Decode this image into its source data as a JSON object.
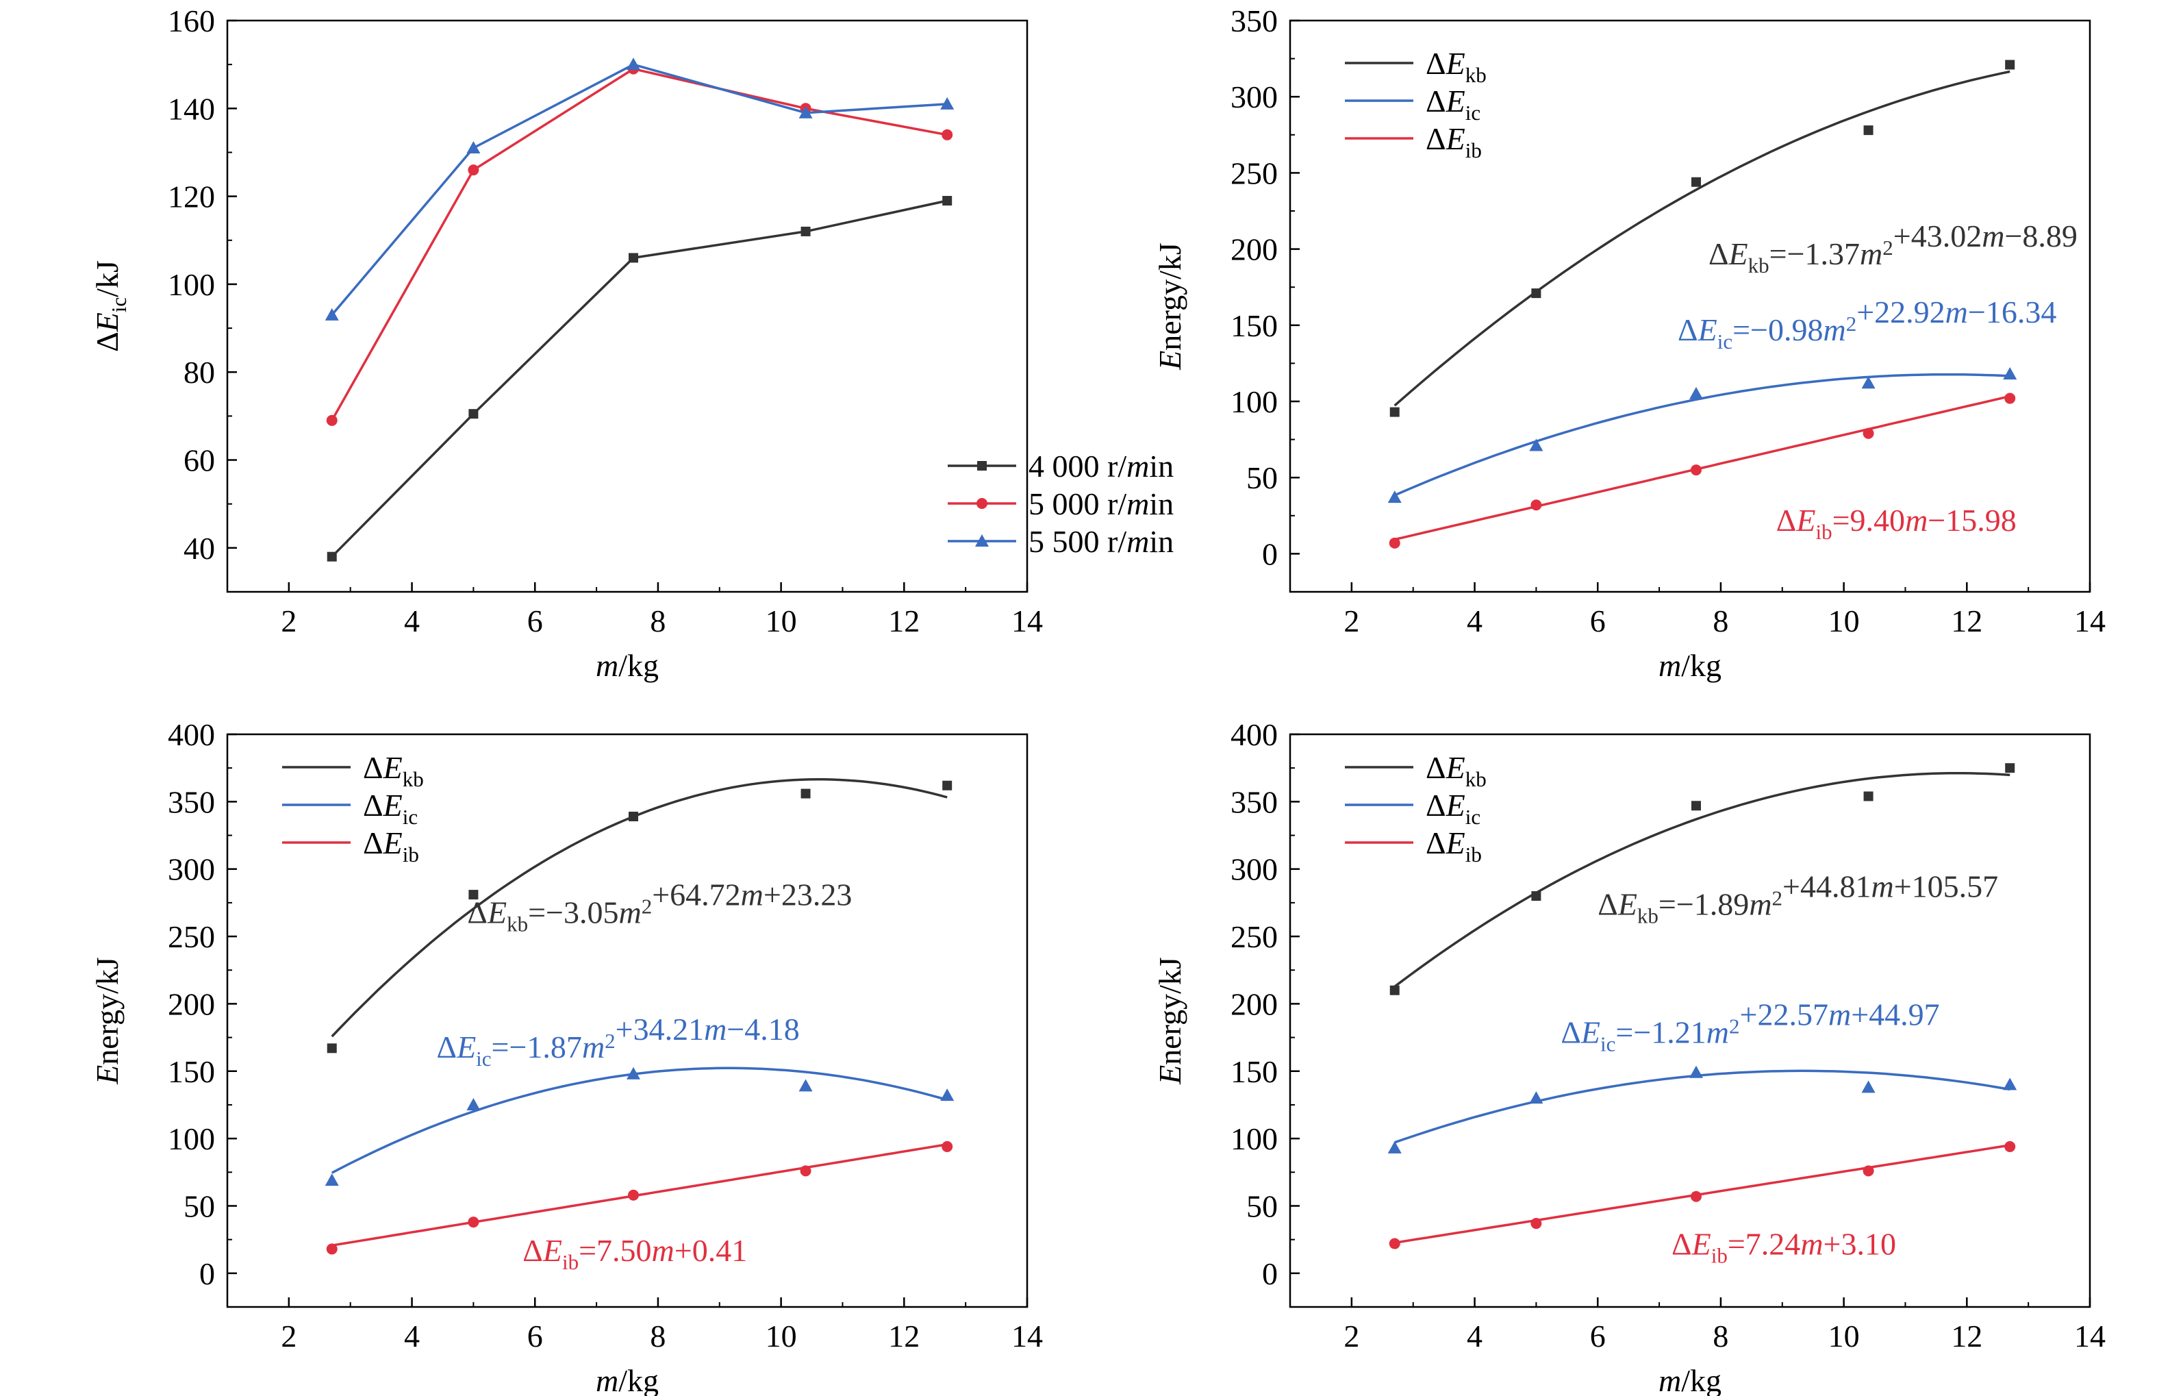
{
  "colors": {
    "black": "#333333",
    "red": "#e03040",
    "blue": "#3a6cc0",
    "axis": "#000000"
  },
  "chart_data": [
    {
      "type": "line",
      "xlabel": "m/kg",
      "ylabel": "ΔE_ic/kJ",
      "xlim": [
        1,
        14
      ],
      "ylim": [
        30,
        160
      ],
      "xticks": [
        2,
        4,
        6,
        8,
        10,
        12,
        14
      ],
      "yticks": [
        40,
        60,
        80,
        100,
        120,
        140,
        160
      ],
      "legend_position": "bottom-right",
      "x": [
        2.7,
        5.0,
        7.6,
        10.4,
        12.7
      ],
      "series": [
        {
          "name": "4 000 r/min",
          "color": "#333333",
          "marker": "square",
          "values": [
            38,
            70.5,
            106,
            112,
            119
          ]
        },
        {
          "name": "5 000 r/min",
          "color": "#e03040",
          "marker": "circle",
          "values": [
            69,
            126,
            149,
            140,
            134
          ]
        },
        {
          "name": "5 500 r/min",
          "color": "#3a6cc0",
          "marker": "triangle",
          "values": [
            93,
            131,
            150,
            139,
            141
          ]
        }
      ],
      "annotations": []
    },
    {
      "type": "scatter",
      "xlabel": "m/kg",
      "ylabel": "Energy/kJ",
      "xlim": [
        1,
        14
      ],
      "ylim": [
        -25,
        350
      ],
      "xticks": [
        2,
        4,
        6,
        8,
        10,
        12,
        14
      ],
      "yticks": [
        0,
        50,
        100,
        150,
        200,
        250,
        300,
        350
      ],
      "legend_position": "top-left",
      "x": [
        2.7,
        5.0,
        7.6,
        10.4,
        12.7
      ],
      "series": [
        {
          "name": "ΔE_kb",
          "color": "#333333",
          "marker": "square",
          "values": [
            93,
            171,
            244,
            278,
            321
          ],
          "fit": [
            -1.37,
            43.02,
            -8.89
          ]
        },
        {
          "name": "ΔE_ic",
          "color": "#3a6cc0",
          "marker": "triangle",
          "values": [
            37,
            71,
            105,
            112,
            118
          ],
          "fit": [
            -0.98,
            22.92,
            -16.34
          ]
        },
        {
          "name": "ΔE_ib",
          "color": "#e03040",
          "marker": "circle",
          "values": [
            7,
            32,
            55,
            79,
            102
          ],
          "fit": [
            0,
            9.4,
            -15.98
          ]
        }
      ],
      "annotations": [
        {
          "series": 0,
          "text": "ΔE_kb=−1.37m²+43.02m−8.89"
        },
        {
          "series": 1,
          "text": "ΔE_ic=−0.98m²+22.92m−16.34"
        },
        {
          "series": 2,
          "text": "ΔE_ib=9.40m−15.98"
        }
      ]
    },
    {
      "type": "scatter",
      "xlabel": "m/kg",
      "ylabel": "Energy/kJ",
      "xlim": [
        1,
        14
      ],
      "ylim": [
        -25,
        400
      ],
      "xticks": [
        2,
        4,
        6,
        8,
        10,
        12,
        14
      ],
      "yticks": [
        0,
        50,
        100,
        150,
        200,
        250,
        300,
        350,
        400
      ],
      "legend_position": "top-left",
      "x": [
        2.7,
        5.0,
        7.6,
        10.4,
        12.7
      ],
      "series": [
        {
          "name": "ΔE_kb",
          "color": "#333333",
          "marker": "square",
          "values": [
            167,
            281,
            339,
            356,
            362
          ],
          "fit": [
            -3.05,
            64.72,
            23.23
          ]
        },
        {
          "name": "ΔE_ic",
          "color": "#3a6cc0",
          "marker": "triangle",
          "values": [
            69,
            125,
            148,
            139,
            132
          ],
          "fit": [
            -1.87,
            34.21,
            -4.18
          ]
        },
        {
          "name": "ΔE_ib",
          "color": "#e03040",
          "marker": "circle",
          "values": [
            18,
            38,
            58,
            76,
            94
          ],
          "fit": [
            0,
            7.5,
            0.41
          ]
        }
      ],
      "annotations": [
        {
          "series": 0,
          "text": "ΔE_kb=−3.05m²+64.72m+23.23"
        },
        {
          "series": 1,
          "text": "ΔE_ic=−1.87m²+34.21m−4.18"
        },
        {
          "series": 2,
          "text": "ΔE_ib=7.50m+0.41"
        }
      ]
    },
    {
      "type": "scatter",
      "xlabel": "m/kg",
      "ylabel": "Energy/kJ",
      "xlim": [
        1,
        14
      ],
      "ylim": [
        -25,
        400
      ],
      "xticks": [
        2,
        4,
        6,
        8,
        10,
        12,
        14
      ],
      "yticks": [
        0,
        50,
        100,
        150,
        200,
        250,
        300,
        350,
        400
      ],
      "legend_position": "top-left",
      "x": [
        2.7,
        5.0,
        7.6,
        10.4,
        12.7
      ],
      "series": [
        {
          "name": "ΔE_kb",
          "color": "#333333",
          "marker": "square",
          "values": [
            210,
            280,
            347,
            354,
            375
          ],
          "fit": [
            -1.89,
            44.81,
            105.57
          ]
        },
        {
          "name": "ΔE_ic",
          "color": "#3a6cc0",
          "marker": "triangle",
          "values": [
            93,
            130,
            149,
            138,
            140
          ],
          "fit": [
            -1.21,
            22.57,
            44.97
          ]
        },
        {
          "name": "ΔE_ib",
          "color": "#e03040",
          "marker": "circle",
          "values": [
            22,
            37,
            57,
            76,
            94
          ],
          "fit": [
            0,
            7.24,
            3.1
          ]
        }
      ],
      "annotations": [
        {
          "series": 0,
          "text": "ΔE_kb=−1.89m²+44.81m+105.57"
        },
        {
          "series": 1,
          "text": "ΔE_ic=−1.21m²+22.57m+44.97"
        },
        {
          "series": 2,
          "text": "ΔE_ib=7.24m+3.10"
        }
      ]
    }
  ]
}
